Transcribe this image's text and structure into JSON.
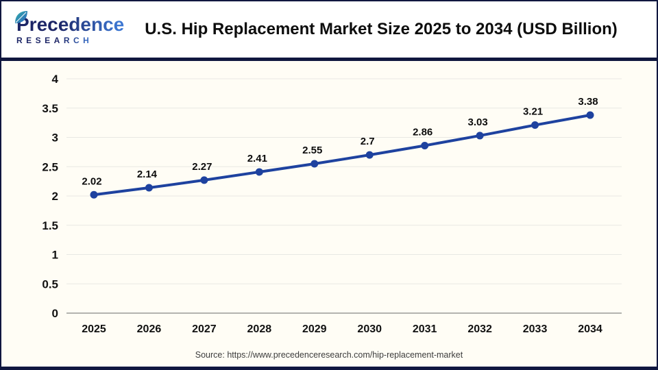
{
  "header": {
    "logo": {
      "name": "Precedence",
      "subtitle": "RESEARCH"
    },
    "title": "U.S. Hip Replacement Market Size 2025 to 2034 (USD Billion)"
  },
  "chart_data": {
    "type": "line",
    "title": "U.S. Hip Replacement Market Size 2025 to 2034 (USD Billion)",
    "categories": [
      "2025",
      "2026",
      "2027",
      "2028",
      "2029",
      "2030",
      "2031",
      "2032",
      "2033",
      "2034"
    ],
    "values": [
      2.02,
      2.14,
      2.27,
      2.41,
      2.55,
      2.7,
      2.86,
      3.03,
      3.21,
      3.38
    ],
    "point_labels": [
      "2.02",
      "2.14",
      "2.27",
      "2.41",
      "2.55",
      "2.7",
      "2.86",
      "3.03",
      "3.21",
      "3.38"
    ],
    "xlabel": "",
    "ylabel": "",
    "ylim": [
      0,
      4
    ],
    "yticks": [
      "0",
      "0.5",
      "1",
      "1.5",
      "2",
      "2.5",
      "3",
      "3.5",
      "4"
    ],
    "grid": true,
    "legend_position": "none",
    "marker": "circle"
  },
  "footer": {
    "source": "Source: https://www.precedenceresearch.com/hip-replacement-market"
  },
  "colors": {
    "accent_navy": "#10173f",
    "line_blue": "#1e429f",
    "logo_dark": "#1c2566",
    "logo_light": "#3d77d2",
    "leaf_teal": "#35b3a9",
    "grid_line": "#e8e8e3",
    "axis_line": "#b3b3ae",
    "chart_bg": "#fffdf5",
    "header_bg": "#ffffff",
    "tick_text": "#111111",
    "data_label_text": "#0d0d0d",
    "source_text": "#3c3c3c"
  }
}
